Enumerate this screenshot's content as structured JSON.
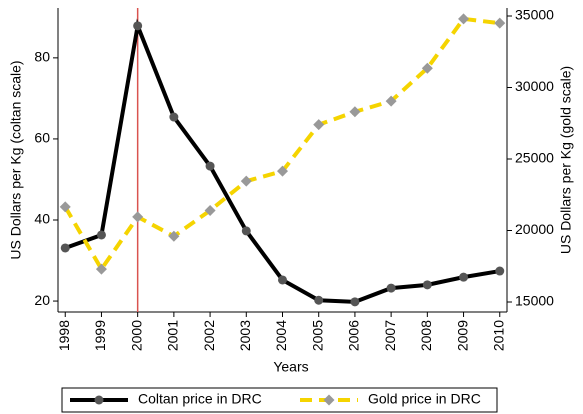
{
  "chart_data": {
    "type": "line",
    "x_label": "Years",
    "y_label": "US Dollars per Kg (coltan scale)",
    "y2_label": "US Dollars per Kg (gold scale)",
    "x": [
      1998,
      1999,
      2000,
      2001,
      2002,
      2003,
      2004,
      2005,
      2006,
      2007,
      2008,
      2009,
      2010
    ],
    "xlim": [
      1997.8,
      2010.2
    ],
    "xticks": [
      1998,
      1999,
      2000,
      2001,
      2002,
      2003,
      2004,
      2005,
      2006,
      2007,
      2008,
      2009,
      2010
    ],
    "ylim": [
      17.3,
      92.3
    ],
    "yticks": [
      20,
      40,
      60,
      80
    ],
    "y2lim": [
      14300,
      35560
    ],
    "y2ticks": [
      15000,
      20000,
      25000,
      30000,
      35000
    ],
    "vline_x": 2000,
    "vline_color": "#d9534f",
    "legend": "bottom",
    "series": [
      {
        "name": "Coltan price in DRC",
        "color": "#000000",
        "marker": "circle",
        "marker_color": "#555555",
        "dash": false,
        "values": [
          33.1,
          36.3,
          87.9,
          65.4,
          53.3,
          37.3,
          25.2,
          20.2,
          19.8,
          23.2,
          24.0,
          25.9,
          27.4
        ]
      },
      {
        "name": "Gold price in DRC",
        "color": "#f5d400",
        "marker": "diamond",
        "marker_color": "#999999",
        "dash": true,
        "axis": "y2",
        "values": [
          21650,
          17300,
          20950,
          19600,
          21400,
          23450,
          24150,
          27400,
          28300,
          29050,
          31350,
          34800,
          34500
        ]
      }
    ]
  }
}
